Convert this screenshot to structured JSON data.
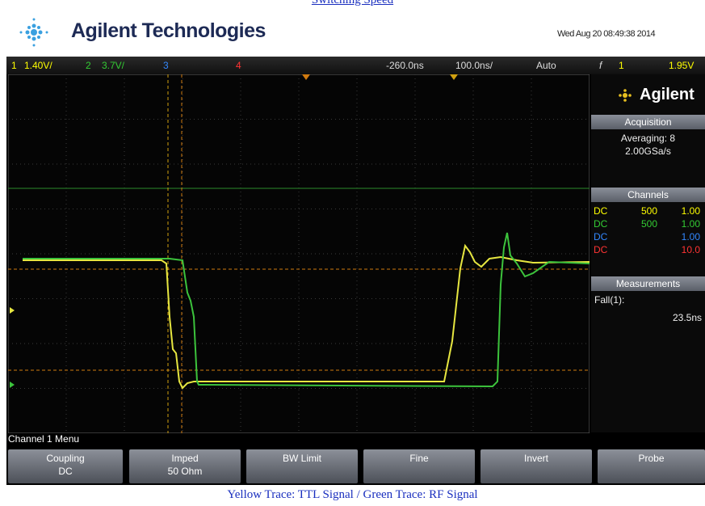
{
  "header": {
    "heading": "Switching Speed",
    "brand": "Agilent Technologies",
    "timestamp": "Wed Aug 20 08:49:38 2014"
  },
  "status_bar": {
    "ch1": "1",
    "ch1_scale": "1.40V/",
    "ch2": "2",
    "ch2_scale": "3.7V/",
    "ch3": "3",
    "ch4": "4",
    "delay": "-260.0ns",
    "timebase": "100.0ns/",
    "trigger_mode": "Auto",
    "trigger_symbol": "f",
    "trigger_channel": "1",
    "trigger_level": "1.95V"
  },
  "side_panel": {
    "logo": "Agilent",
    "acquisition": {
      "title": "Acquisition",
      "mode": "Averaging: 8",
      "rate": "2.00GSa/s"
    },
    "channels": {
      "title": "Channels",
      "rows": [
        [
          "DC",
          "500",
          "1.00"
        ],
        [
          "DC",
          "500",
          "1.00"
        ],
        [
          "DC",
          "1.00"
        ],
        [
          "DC",
          "10.0"
        ]
      ]
    },
    "measurements": {
      "title": "Measurements",
      "label": "Fall(1):",
      "value": "23.5ns"
    }
  },
  "menu": {
    "title": "Channel 1 Menu",
    "softkeys": [
      {
        "label": "Coupling",
        "value": "DC"
      },
      {
        "label": "Imped",
        "value": "50 Ohm"
      },
      {
        "label": "BW Limit"
      },
      {
        "label": "Fine"
      },
      {
        "label": "Invert"
      },
      {
        "label": "Probe"
      }
    ]
  },
  "caption": "Yellow Trace: TTL Signal / Green Trace: RF Signal"
}
